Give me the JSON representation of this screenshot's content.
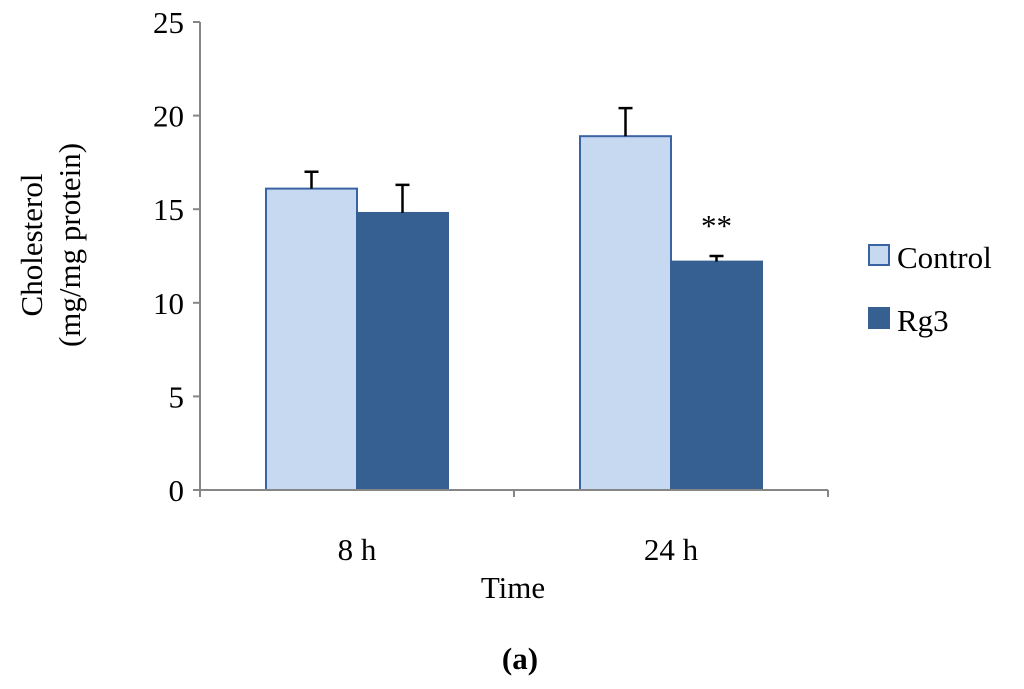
{
  "chart_data": {
    "type": "bar",
    "categories": [
      "8 h",
      "24 h"
    ],
    "series": [
      {
        "name": "Control",
        "values": [
          16.1,
          18.9
        ],
        "errors": [
          0.9,
          1.5
        ],
        "color": "#c6d9f1",
        "stroke": "#3a63a4"
      },
      {
        "name": "Rg3",
        "values": [
          14.8,
          12.2
        ],
        "errors": [
          1.5,
          0.3
        ],
        "color": "#376092",
        "stroke": "#376092"
      }
    ],
    "significance": [
      {
        "category": "24 h",
        "series": "Rg3",
        "label": "**"
      }
    ],
    "xlabel": "Time",
    "ylabel_lines": [
      "Cholesterol",
      "(mg/mg protein)"
    ],
    "ylim": [
      0,
      25
    ],
    "yticks": [
      0,
      5,
      10,
      15,
      20,
      25
    ],
    "grid": false,
    "legend_position": "right",
    "panel_label": "(a)"
  }
}
